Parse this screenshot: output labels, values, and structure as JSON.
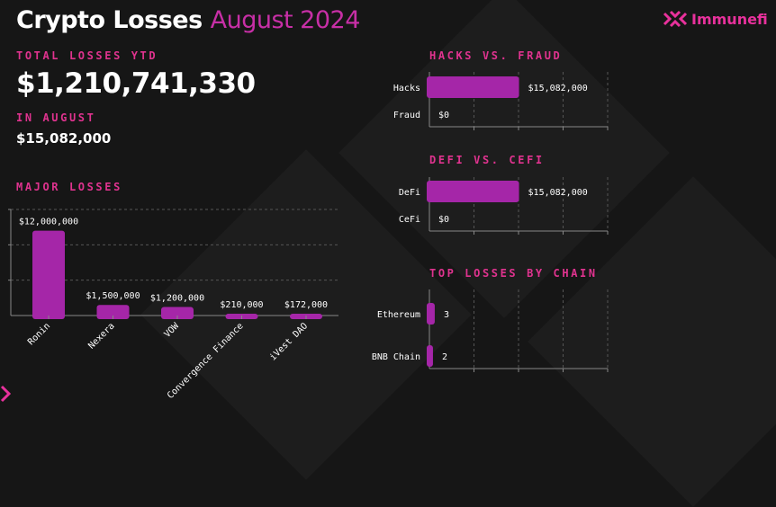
{
  "header": {
    "title": "Crypto Losses",
    "title_accent": "August 2024",
    "brand": "Immunefi"
  },
  "summary": {
    "total_label": "TOTAL LOSSES YTD",
    "total_value": "$1,210,741,330",
    "month_label": "IN AUGUST",
    "month_value": "$15,082,000"
  },
  "colors": {
    "accent": "#a526a8",
    "label": "#e0338f",
    "background": "#161616"
  },
  "chart_data": [
    {
      "id": "major-losses",
      "type": "bar",
      "title": "MAJOR LOSSES",
      "categories": [
        "Ronin",
        "Nexera",
        "VOW",
        "Convergence Finance",
        "iVest DAO"
      ],
      "values": [
        12000000,
        1500000,
        1200000,
        210000,
        172000
      ],
      "data_labels": [
        "$12,000,000",
        "$1,500,000",
        "$1,200,000",
        "$210,000",
        "$172,000"
      ],
      "ylim": [
        0,
        15000000
      ],
      "grid": true
    },
    {
      "id": "hacks-vs-fraud",
      "type": "bar",
      "orientation": "horizontal",
      "title": "HACKS VS. FRAUD",
      "categories": [
        "Hacks",
        "Fraud"
      ],
      "values": [
        15082000,
        0
      ],
      "data_labels": [
        "$15,082,000",
        "$0"
      ],
      "xlim": [
        0,
        30000000
      ],
      "grid": true
    },
    {
      "id": "defi-vs-cefi",
      "type": "bar",
      "orientation": "horizontal",
      "title": "DEFI VS. CEFI",
      "categories": [
        "DeFi",
        "CeFi"
      ],
      "values": [
        15082000,
        0
      ],
      "data_labels": [
        "$15,082,000",
        "$0"
      ],
      "xlim": [
        0,
        30000000
      ],
      "grid": true
    },
    {
      "id": "top-losses-by-chain",
      "type": "bar",
      "orientation": "horizontal",
      "title": "TOP LOSSES BY CHAIN",
      "categories": [
        "Ethereum",
        "BNB Chain"
      ],
      "values": [
        3,
        2
      ],
      "data_labels": [
        "3",
        "2"
      ],
      "xlim": [
        0,
        100
      ],
      "grid": true
    }
  ]
}
